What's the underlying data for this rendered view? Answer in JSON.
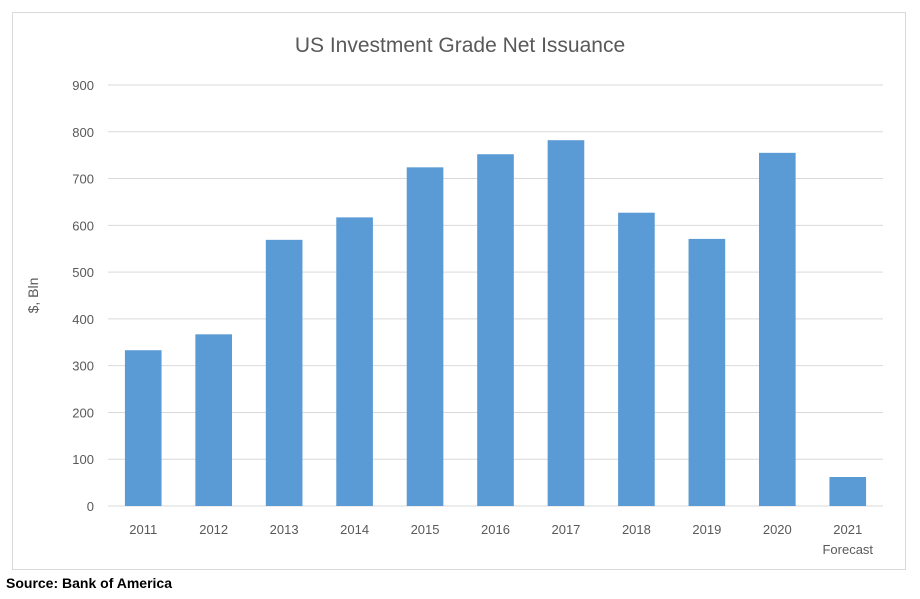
{
  "chart_data": {
    "type": "bar",
    "title": "US Investment Grade Net Issuance",
    "xlabel": "",
    "ylabel": "$, Bln",
    "categories": [
      "2011",
      "2012",
      "2013",
      "2014",
      "2015",
      "2016",
      "2017",
      "2018",
      "2019",
      "2020",
      "2021\nForecast"
    ],
    "values": [
      333,
      367,
      569,
      617,
      724,
      752,
      782,
      627,
      571,
      755,
      62
    ],
    "ylim": [
      0,
      900
    ],
    "yticks": [
      0,
      100,
      200,
      300,
      400,
      500,
      600,
      700,
      800,
      900
    ],
    "grid": true,
    "legend": "none",
    "colors": {
      "bar": "#5b9bd5",
      "grid": "#d9d9d9",
      "axis_text": "#595959",
      "title": "#595959"
    }
  },
  "source": "Source: Bank of America"
}
